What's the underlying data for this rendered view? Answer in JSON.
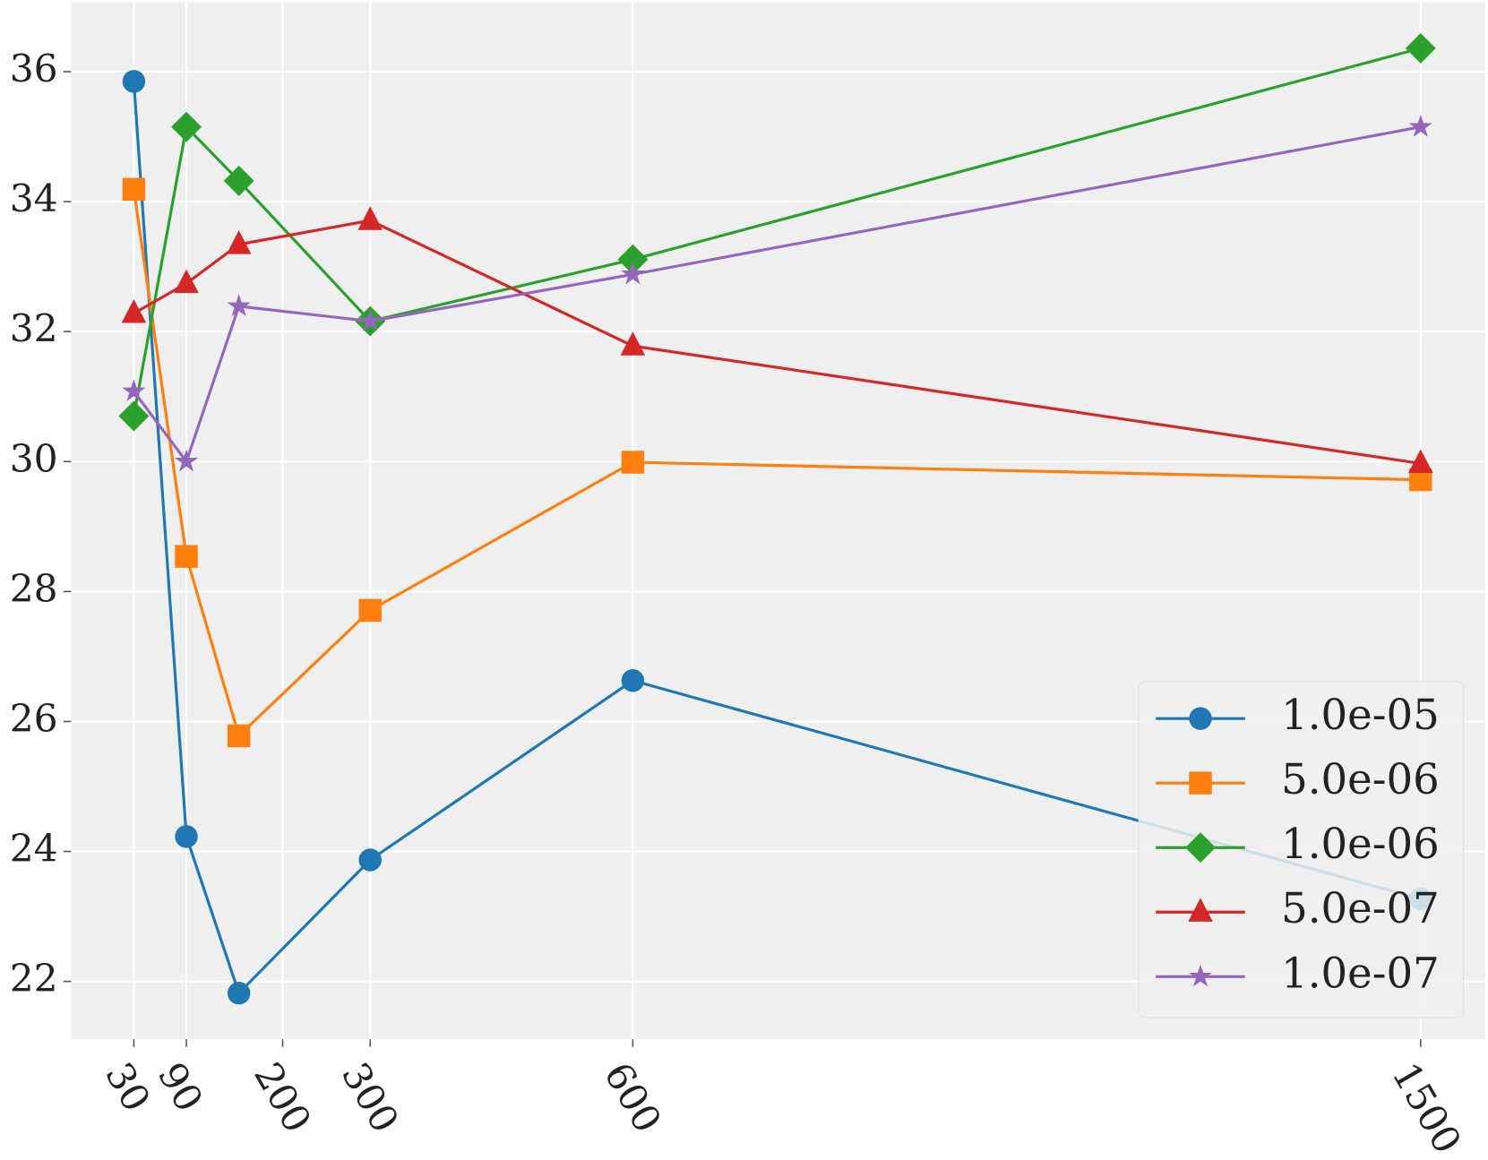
{
  "chart_data": {
    "type": "line",
    "x": [
      30,
      90,
      150,
      300,
      600,
      1500
    ],
    "xlim": [
      -41.6,
      1573.7
    ],
    "xticks": [
      30,
      90,
      200,
      300,
      600,
      1500
    ],
    "ylim": [
      21.11,
      37.07
    ],
    "yticks": [
      22,
      24,
      26,
      28,
      30,
      32,
      34,
      36
    ],
    "grid": true,
    "legend": "lower right",
    "series": [
      {
        "name": "1.0e-05",
        "color": "#1f77b4",
        "marker": "circle",
        "values": [
          35.85,
          24.23,
          21.82,
          23.87,
          26.63,
          23.27
        ]
      },
      {
        "name": "5.0e-06",
        "color": "#ff7f0e",
        "marker": "square",
        "values": [
          34.19,
          28.54,
          25.78,
          27.71,
          29.99,
          29.72
        ]
      },
      {
        "name": "1.0e-06",
        "color": "#2ca02c",
        "marker": "diamond",
        "values": [
          30.7,
          35.15,
          34.32,
          32.16,
          33.11,
          36.36
        ]
      },
      {
        "name": "5.0e-07",
        "color": "#d62728",
        "marker": "triangle",
        "values": [
          32.28,
          32.74,
          33.34,
          33.71,
          31.78,
          29.97
        ]
      },
      {
        "name": "1.0e-07",
        "color": "#9467bd",
        "marker": "star",
        "values": [
          31.08,
          30.0,
          32.39,
          32.16,
          32.88,
          35.15
        ]
      }
    ]
  }
}
